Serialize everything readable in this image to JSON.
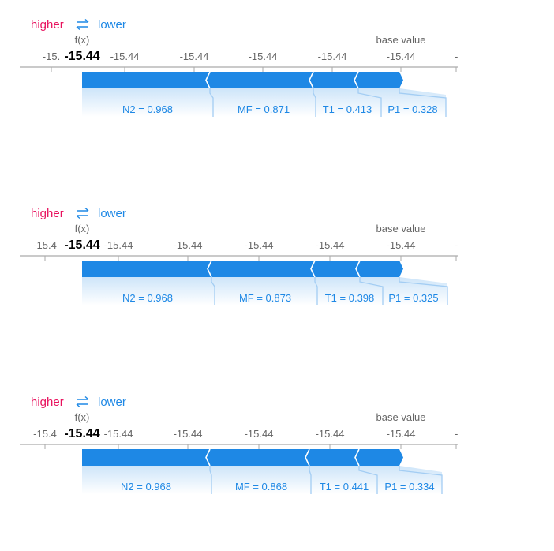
{
  "legend": {
    "higher": "higher",
    "lower": "lower"
  },
  "labels": {
    "fx": "f(x)",
    "base": "base value"
  },
  "colors": {
    "positive": "#e8115d",
    "negative": "#1e88e5",
    "connector": "#a3cdf3"
  },
  "chart_data": [
    {
      "type": "force",
      "output_value": "-15.44",
      "tick_labels": [
        "-15.",
        "-15.44",
        "-15.44",
        "-15.44",
        "-15.44",
        "-15.44",
        "-"
      ],
      "features": [
        {
          "label": "N2 = 0.968"
        },
        {
          "label": "MF = 0.871"
        },
        {
          "label": "T1 = 0.413"
        },
        {
          "label": "P1 = 0.328"
        }
      ]
    },
    {
      "type": "force",
      "output_value": "-15.44",
      "tick_labels": [
        "-15.4",
        "-15.44",
        "-15.44",
        "-15.44",
        "-15.44",
        "-15.44",
        "-"
      ],
      "features": [
        {
          "label": "N2 = 0.968"
        },
        {
          "label": "MF = 0.873"
        },
        {
          "label": "T1 = 0.398"
        },
        {
          "label": "P1 = 0.325"
        }
      ]
    },
    {
      "type": "force",
      "output_value": "-15.44",
      "tick_labels": [
        "-15.4",
        "-15.44",
        "-15.44",
        "-15.44",
        "-15.44",
        "-15.44",
        "-"
      ],
      "features": [
        {
          "label": "N2 = 0.968"
        },
        {
          "label": "MF = 0.868"
        },
        {
          "label": "T1 = 0.441"
        },
        {
          "label": "P1 = 0.334"
        }
      ]
    }
  ]
}
